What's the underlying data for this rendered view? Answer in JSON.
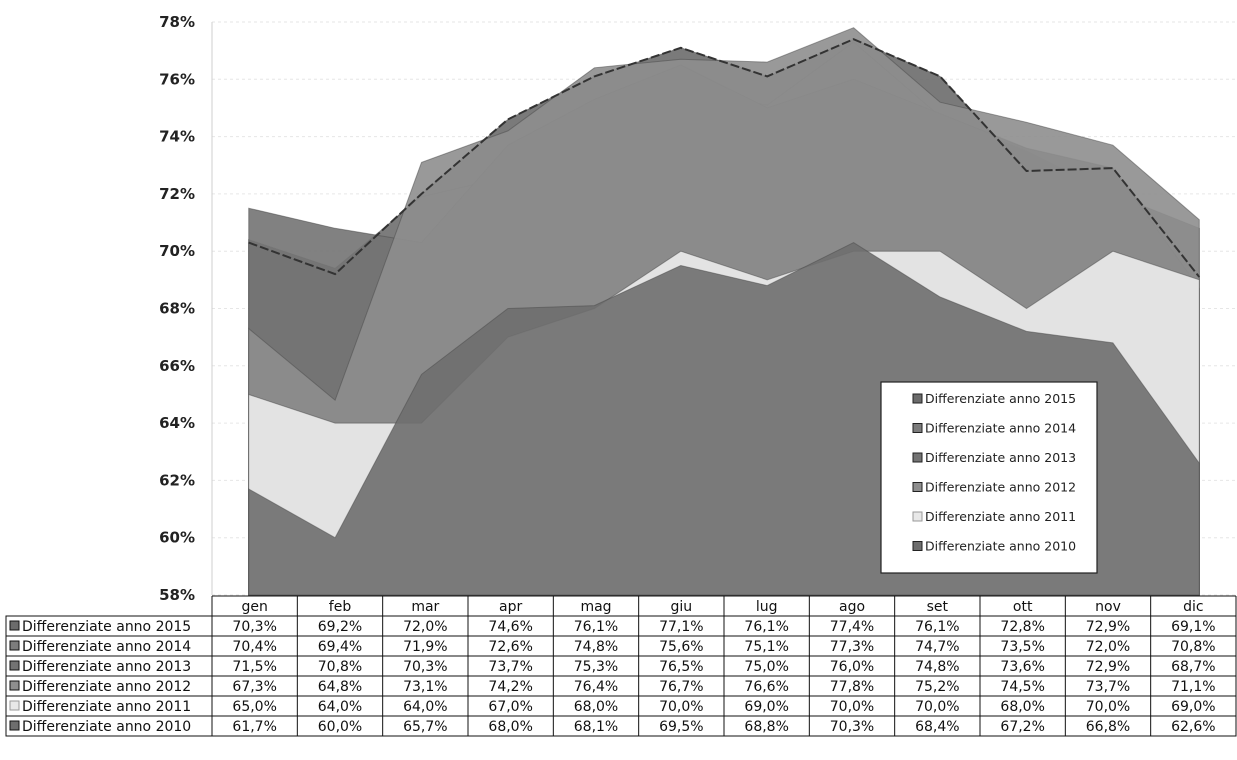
{
  "chart_data": {
    "type": "area",
    "categories": [
      "gen",
      "feb",
      "mar",
      "apr",
      "mag",
      "giu",
      "lug",
      "ago",
      "set",
      "ott",
      "nov",
      "dic"
    ],
    "ylim": [
      58,
      78
    ],
    "yticks": [
      "58%",
      "60%",
      "62%",
      "64%",
      "66%",
      "68%",
      "70%",
      "72%",
      "74%",
      "76%",
      "78%"
    ],
    "grid": true,
    "legend_position": "bottom-right",
    "series": [
      {
        "name": "Differenziate anno 2015",
        "color": "#6b6b6b",
        "values": [
          70.3,
          69.2,
          72.0,
          74.6,
          76.1,
          77.1,
          76.1,
          77.4,
          76.1,
          72.8,
          72.9,
          69.1
        ],
        "labels": [
          "70,3%",
          "69,2%",
          "72,0%",
          "74,6%",
          "76,1%",
          "77,1%",
          "76,1%",
          "77,4%",
          "76,1%",
          "72,8%",
          "72,9%",
          "69,1%"
        ]
      },
      {
        "name": "Differenziate anno 2014",
        "color": "#7c7c7c",
        "values": [
          70.4,
          69.4,
          71.9,
          72.6,
          74.8,
          75.6,
          75.1,
          77.3,
          74.7,
          73.5,
          72.0,
          70.8
        ],
        "labels": [
          "70,4%",
          "69,4%",
          "71,9%",
          "72,6%",
          "74,8%",
          "75,6%",
          "75,1%",
          "77,3%",
          "74,7%",
          "73,5%",
          "72,0%",
          "70,8%"
        ]
      },
      {
        "name": "Differenziate anno 2013",
        "color": "#737373",
        "values": [
          71.5,
          70.8,
          70.3,
          73.7,
          75.3,
          76.5,
          75.0,
          76.0,
          74.8,
          73.6,
          72.9,
          68.7
        ],
        "labels": [
          "71,5%",
          "70,8%",
          "70,3%",
          "73,7%",
          "75,3%",
          "76,5%",
          "75,0%",
          "76,0%",
          "74,8%",
          "73,6%",
          "72,9%",
          "68,7%"
        ]
      },
      {
        "name": "Differenziate anno 2012",
        "color": "#8e8e8e",
        "values": [
          67.3,
          64.8,
          73.1,
          74.2,
          76.4,
          76.7,
          76.6,
          77.8,
          75.2,
          74.5,
          73.7,
          71.1
        ],
        "labels": [
          "67,3%",
          "64,8%",
          "73,1%",
          "74,2%",
          "76,4%",
          "76,7%",
          "76,6%",
          "77,8%",
          "75,2%",
          "74,5%",
          "73,7%",
          "71,1%"
        ]
      },
      {
        "name": "Differenziate anno 2011",
        "color": "#e8e8e8",
        "values": [
          65.0,
          64.0,
          64.0,
          67.0,
          68.0,
          70.0,
          69.0,
          70.0,
          70.0,
          68.0,
          70.0,
          69.0
        ],
        "labels": [
          "65,0%",
          "64,0%",
          "64,0%",
          "67,0%",
          "68,0%",
          "70,0%",
          "69,0%",
          "70,0%",
          "70,0%",
          "68,0%",
          "70,0%",
          "69,0%"
        ]
      },
      {
        "name": "Differenziate anno 2010",
        "color": "#6e6e6e",
        "values": [
          61.7,
          60.0,
          65.7,
          68.0,
          68.1,
          69.5,
          68.8,
          70.3,
          68.4,
          67.2,
          66.8,
          62.6
        ],
        "labels": [
          "61,7%",
          "60,0%",
          "65,7%",
          "68,0%",
          "68,1%",
          "69,5%",
          "68,8%",
          "70,3%",
          "68,4%",
          "67,2%",
          "66,8%",
          "62,6%"
        ]
      }
    ],
    "legend_order": [
      0,
      1,
      2,
      3,
      4,
      5
    ]
  }
}
